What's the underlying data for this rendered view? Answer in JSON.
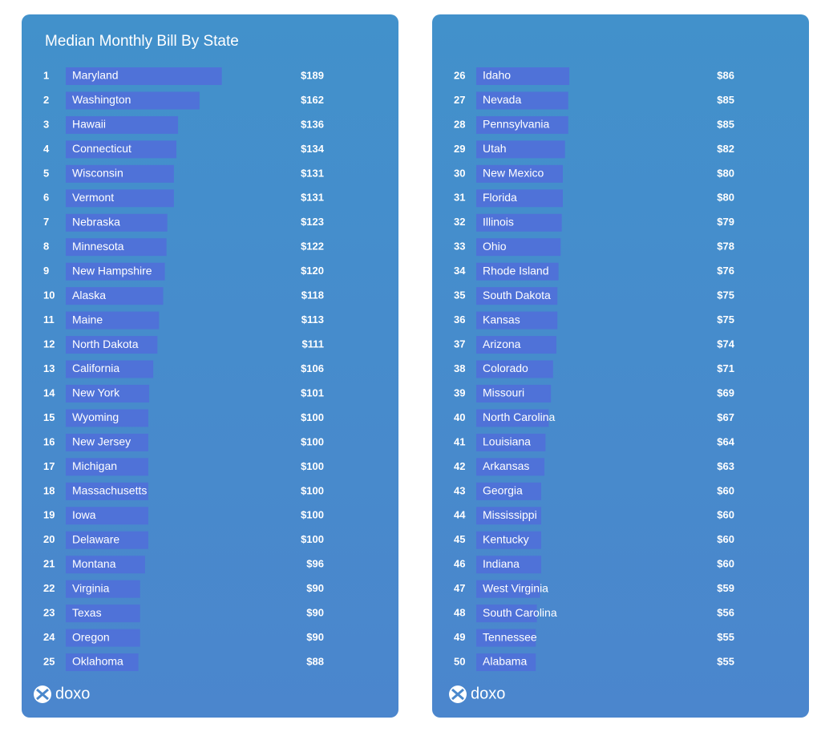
{
  "logo": "doxo",
  "chart_data": [
    {
      "type": "bar",
      "title": "Median Monthly Bill By State",
      "color": "#4f72d8",
      "ranks": [
        1,
        2,
        3,
        4,
        5,
        6,
        7,
        8,
        9,
        10,
        11,
        12,
        13,
        14,
        15,
        16,
        17,
        18,
        19,
        20,
        21,
        22,
        23,
        24,
        25
      ],
      "categories": [
        "Maryland",
        "Washington",
        "Hawaii",
        "Connecticut",
        "Wisconsin",
        "Vermont",
        "Nebraska",
        "Minnesota",
        "New Hampshire",
        "Alaska",
        "Maine",
        "North Dakota",
        "California",
        "New York",
        "Wyoming",
        "New Jersey",
        "Michigan",
        "Massachusetts",
        "Iowa",
        "Delaware",
        "Montana",
        "Virginia",
        "Texas",
        "Oregon",
        "Oklahoma"
      ],
      "values": [
        189,
        162,
        136,
        134,
        131,
        131,
        123,
        122,
        120,
        118,
        113,
        111,
        106,
        101,
        100,
        100,
        100,
        100,
        100,
        100,
        96,
        90,
        90,
        90,
        88
      ],
      "value_labels": [
        "$189",
        "$162",
        "$136",
        "$134",
        "$131",
        "$131",
        "$123",
        "$122",
        "$120",
        "$118",
        "$113",
        "$111",
        "$106",
        "$101",
        "$100",
        "$100",
        "$100",
        "$100",
        "$100",
        "$100",
        "$96",
        "$90",
        "$90",
        "$90",
        "$88"
      ]
    },
    {
      "type": "bar",
      "color": "#4f72d8",
      "ranks": [
        26,
        27,
        28,
        29,
        30,
        31,
        32,
        33,
        34,
        35,
        36,
        37,
        38,
        39,
        40,
        41,
        42,
        43,
        44,
        45,
        46,
        47,
        48,
        49,
        50
      ],
      "categories": [
        "Idaho",
        "Nevada",
        "Pennsylvania",
        "Utah",
        "New Mexico",
        "Florida",
        "Illinois",
        "Ohio",
        "Rhode Island",
        "South Dakota",
        "Kansas",
        "Arizona",
        "Colorado",
        "Missouri",
        "North Carolina",
        "Louisiana",
        "Arkansas",
        "Georgia",
        "Mississippi",
        "Kentucky",
        "Indiana",
        "West Virginia",
        "South Carolina",
        "Tennessee",
        "Alabama"
      ],
      "values": [
        86,
        85,
        85,
        82,
        80,
        80,
        79,
        78,
        76,
        75,
        75,
        74,
        71,
        69,
        67,
        64,
        63,
        60,
        60,
        60,
        60,
        59,
        56,
        55,
        55
      ],
      "value_labels": [
        "$86",
        "$85",
        "$85",
        "$82",
        "$80",
        "$80",
        "$79",
        "$78",
        "$76",
        "$75",
        "$75",
        "$74",
        "$71",
        "$69",
        "$67",
        "$64",
        "$63",
        "$60",
        "$60",
        "$60",
        "$60",
        "$59",
        "$56",
        "$55",
        "$55"
      ]
    }
  ]
}
